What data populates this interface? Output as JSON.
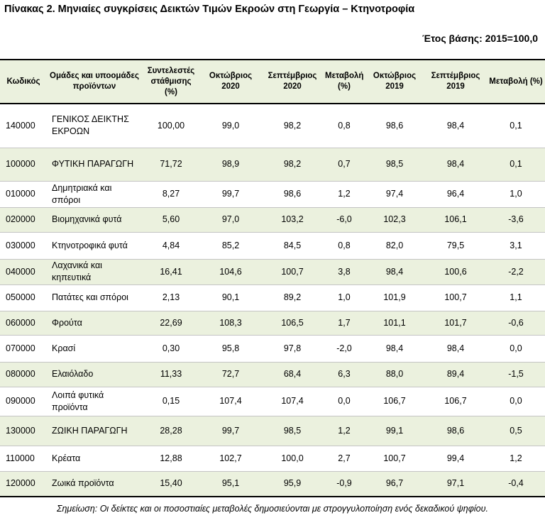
{
  "title": "Πίνακας 2. Μηνιαίες συγκρίσεις Δεικτών Τιμών Εκροών στη Γεωργία – Κτηνοτροφία",
  "base_year": "Έτος βάσης: 2015=100,0",
  "headers": [
    "Κωδικός",
    "Ομάδες και υποομάδες προϊόντων",
    "Συντελεστές στάθμισης (%)",
    "Οκτώβριος 2020",
    "Σεπτέμβριος 2020",
    "Μεταβολή (%)",
    "Οκτώβριος 2019",
    "Σεπτέμβριος 2019",
    "Μεταβολή (%)"
  ],
  "rows": [
    {
      "code": "140000",
      "name": "ΓΕΝΙΚΟΣ ΔΕΙΚΤΗΣ ΕΚΡΟΩΝ",
      "weight": "100,00",
      "oct2020": "99,0",
      "sep2020": "98,2",
      "chg2020": "0,8",
      "oct2019": "98,6",
      "sep2019": "98,4",
      "chg2019": "0,1"
    },
    {
      "code": "100000",
      "name": "ΦΥΤΙΚΗ ΠΑΡΑΓΩΓΗ",
      "weight": "71,72",
      "oct2020": "98,9",
      "sep2020": "98,2",
      "chg2020": "0,7",
      "oct2019": "98,5",
      "sep2019": "98,4",
      "chg2019": "0,1"
    },
    {
      "code": "010000",
      "name": "Δημητριακά και σπόροι",
      "weight": "8,27",
      "oct2020": "99,7",
      "sep2020": "98,6",
      "chg2020": "1,2",
      "oct2019": "97,4",
      "sep2019": "96,4",
      "chg2019": "1,0"
    },
    {
      "code": "020000",
      "name": "Βιομηχανικά φυτά",
      "weight": "5,60",
      "oct2020": "97,0",
      "sep2020": "103,2",
      "chg2020": "-6,0",
      "oct2019": "102,3",
      "sep2019": "106,1",
      "chg2019": "-3,6"
    },
    {
      "code": "030000",
      "name": "Κτηνοτροφικά φυτά",
      "weight": "4,84",
      "oct2020": "85,2",
      "sep2020": "84,5",
      "chg2020": "0,8",
      "oct2019": "82,0",
      "sep2019": "79,5",
      "chg2019": "3,1"
    },
    {
      "code": "040000",
      "name": "Λαχανικά και κηπευτικά",
      "weight": "16,41",
      "oct2020": "104,6",
      "sep2020": "100,7",
      "chg2020": "3,8",
      "oct2019": "98,4",
      "sep2019": "100,6",
      "chg2019": "-2,2"
    },
    {
      "code": "050000",
      "name": "Πατάτες και σπόροι",
      "weight": "2,13",
      "oct2020": "90,1",
      "sep2020": "89,2",
      "chg2020": "1,0",
      "oct2019": "101,9",
      "sep2019": "100,7",
      "chg2019": "1,1"
    },
    {
      "code": "060000",
      "name": "Φρούτα",
      "weight": "22,69",
      "oct2020": "108,3",
      "sep2020": "106,5",
      "chg2020": "1,7",
      "oct2019": "101,1",
      "sep2019": "101,7",
      "chg2019": "-0,6"
    },
    {
      "code": "070000",
      "name": "Κρασί",
      "weight": "0,30",
      "oct2020": "95,8",
      "sep2020": "97,8",
      "chg2020": "-2,0",
      "oct2019": "98,4",
      "sep2019": "98,4",
      "chg2019": "0,0"
    },
    {
      "code": "080000",
      "name": "Ελαιόλαδο",
      "weight": "11,33",
      "oct2020": "72,7",
      "sep2020": "68,4",
      "chg2020": "6,3",
      "oct2019": "88,0",
      "sep2019": "89,4",
      "chg2019": "-1,5"
    },
    {
      "code": "090000",
      "name": "Λοιπά φυτικά προϊόντα",
      "weight": "0,15",
      "oct2020": "107,4",
      "sep2020": "107,4",
      "chg2020": "0,0",
      "oct2019": "106,7",
      "sep2019": "106,7",
      "chg2019": "0,0"
    },
    {
      "code": "130000",
      "name": "ΖΩΙΚΗ ΠΑΡΑΓΩΓΗ",
      "weight": "28,28",
      "oct2020": "99,7",
      "sep2020": "98,5",
      "chg2020": "1,2",
      "oct2019": "99,1",
      "sep2019": "98,6",
      "chg2019": "0,5"
    },
    {
      "code": "110000",
      "name": "Κρέατα",
      "weight": "12,88",
      "oct2020": "102,7",
      "sep2020": "100,0",
      "chg2020": "2,7",
      "oct2019": "100,7",
      "sep2019": "99,4",
      "chg2019": "1,2"
    },
    {
      "code": "120000",
      "name": "Ζωικά προϊόντα",
      "weight": "15,40",
      "oct2020": "95,1",
      "sep2020": "95,9",
      "chg2020": "-0,9",
      "oct2019": "96,7",
      "sep2019": "97,1",
      "chg2019": "-0,4"
    }
  ],
  "note": "Σημείωση: Οι δείκτες και οι ποσοστιαίες μεταβολές δημοσιεύονται με στρογγυλοποίηση ενός δεκαδικού ψηφίου."
}
